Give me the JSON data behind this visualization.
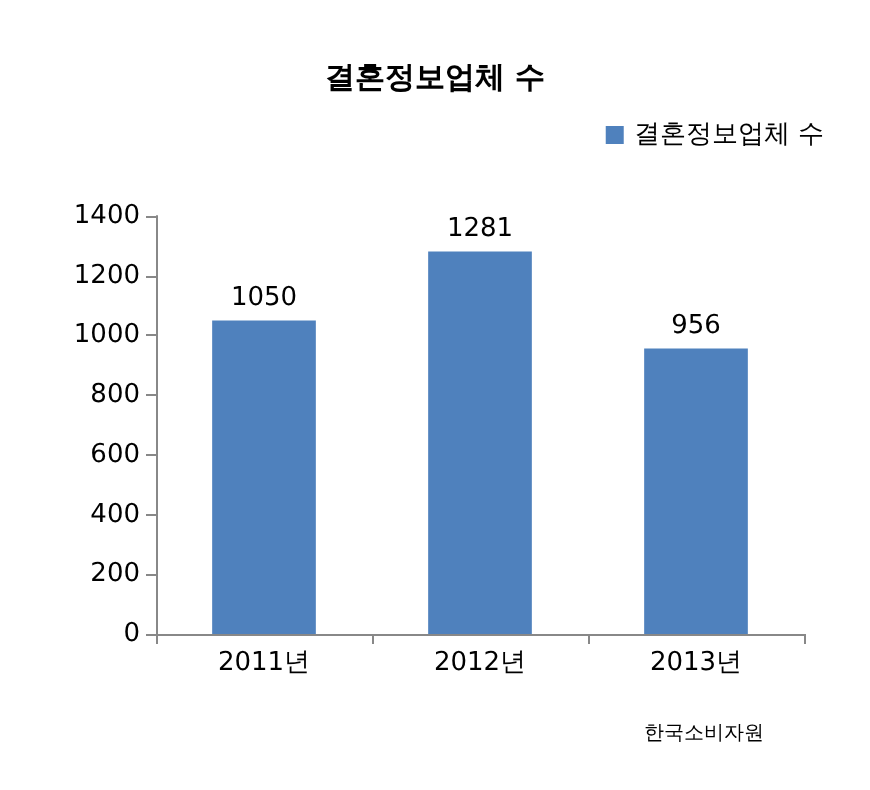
{
  "chart_data": {
    "type": "bar",
    "title": "결혼정보업체 수",
    "categories": [
      "2011년",
      "2012년",
      "2013년"
    ],
    "series": [
      {
        "name": "결혼정보업체 수",
        "color": "#4f81bd",
        "values": [
          1050,
          1281,
          956
        ]
      }
    ],
    "ylim": [
      0,
      1400
    ],
    "yticks": [
      0,
      200,
      400,
      600,
      800,
      1000,
      1200,
      1400
    ],
    "grid": false,
    "legend": "top right",
    "data_labels": true,
    "annotations": [
      "한국소비자원"
    ]
  }
}
